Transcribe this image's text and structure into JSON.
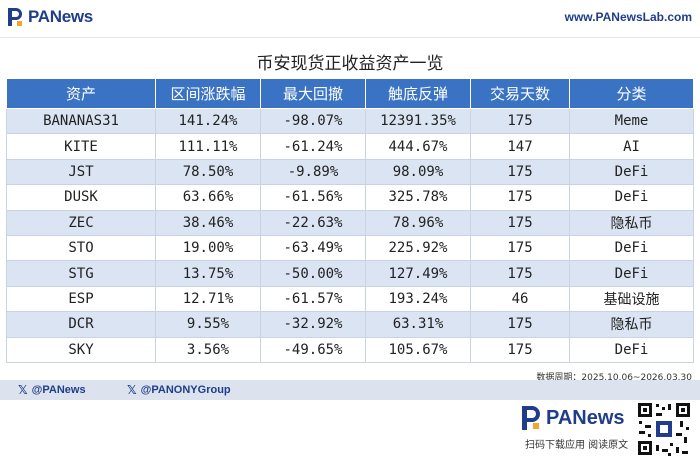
{
  "header": {
    "logo_text": "PANews",
    "url": "www.PANewsLab.com"
  },
  "title": "币安现货正收益资产一览",
  "table": {
    "columns": [
      "资产",
      "区间涨跌幅",
      "最大回撤",
      "触底反弹",
      "交易天数",
      "分类"
    ],
    "rows": [
      [
        "BANANAS31",
        "141.24%",
        "-98.07%",
        "12391.35%",
        "175",
        "Meme"
      ],
      [
        "KITE",
        "111.11%",
        "-61.24%",
        "444.67%",
        "147",
        "AI"
      ],
      [
        "JST",
        "78.50%",
        "-9.89%",
        "98.09%",
        "175",
        "DeFi"
      ],
      [
        "DUSK",
        "63.66%",
        "-61.56%",
        "325.78%",
        "175",
        "DeFi"
      ],
      [
        "ZEC",
        "38.46%",
        "-22.63%",
        "78.96%",
        "175",
        "隐私币"
      ],
      [
        "STO",
        "19.00%",
        "-63.49%",
        "225.92%",
        "175",
        "DeFi"
      ],
      [
        "STG",
        "13.75%",
        "-50.00%",
        "127.49%",
        "175",
        "DeFi"
      ],
      [
        "ESP",
        "12.71%",
        "-61.57%",
        "193.24%",
        "46",
        "基础设施"
      ],
      [
        "DCR",
        "9.55%",
        "-32.92%",
        "63.31%",
        "175",
        "隐私币"
      ],
      [
        "SKY",
        "3.56%",
        "-49.65%",
        "105.67%",
        "175",
        "DeFi"
      ]
    ]
  },
  "note": "数据周期：2025.10.06~2026.03.30",
  "footer": {
    "social": [
      "@PANews",
      "@PANONYGroup"
    ],
    "x_glyph": "𝕏",
    "logo_text": "PANews",
    "tagline": "扫码下载应用  阅读原文"
  },
  "colors": {
    "brand": "#1f3d8a",
    "header_row": "#3a73c4",
    "alt_row": "#dbe4f2"
  }
}
